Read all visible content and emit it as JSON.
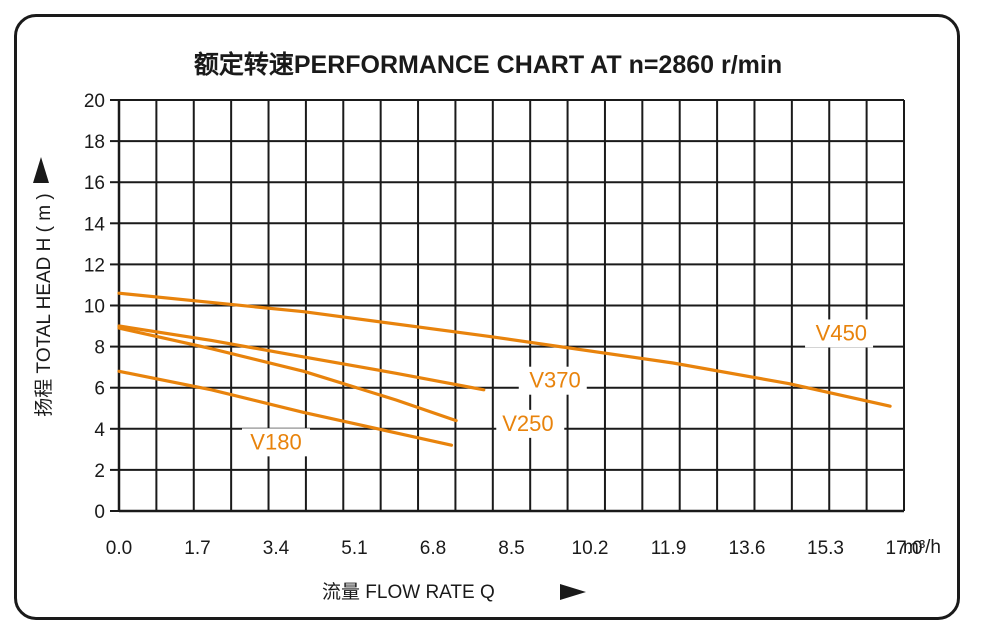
{
  "chart_data": {
    "type": "line",
    "title": "额定转速PERFORMANCE CHART AT  n=2860 r/min",
    "xlabel": "流量 FLOW RATE Q",
    "ylabel": "扬程 TOTAL HEAD H ( m )",
    "x_unit": "m³/h",
    "xlim": [
      0,
      17.0
    ],
    "ylim": [
      0,
      20
    ],
    "x_ticks": [
      "0.0",
      "1.7",
      "3.4",
      "5.1",
      "6.8",
      "8.5",
      "10.2",
      "11.9",
      "13.6",
      "15.3",
      "17.0"
    ],
    "y_ticks": [
      "0",
      "2",
      "4",
      "6",
      "8",
      "10",
      "12",
      "14",
      "16",
      "18",
      "20"
    ],
    "grid": true,
    "line_color": "#e8830c",
    "series": [
      {
        "name": "V450",
        "x": [
          0,
          4.0,
          8.0,
          12.0,
          14.5,
          16.7
        ],
        "y": [
          10.6,
          9.7,
          8.5,
          7.2,
          6.2,
          5.1
        ]
      },
      {
        "name": "V370",
        "x": [
          0,
          2.0,
          4.0,
          6.0,
          7.9
        ],
        "y": [
          9.0,
          8.3,
          7.5,
          6.7,
          5.9
        ]
      },
      {
        "name": "V250",
        "x": [
          0,
          2.0,
          4.0,
          6.0,
          7.3
        ],
        "y": [
          8.9,
          7.9,
          6.8,
          5.4,
          4.4
        ]
      },
      {
        "name": "V180",
        "x": [
          0,
          2.0,
          4.0,
          6.0,
          7.2
        ],
        "y": [
          6.8,
          5.9,
          4.8,
          3.8,
          3.2
        ]
      }
    ]
  }
}
